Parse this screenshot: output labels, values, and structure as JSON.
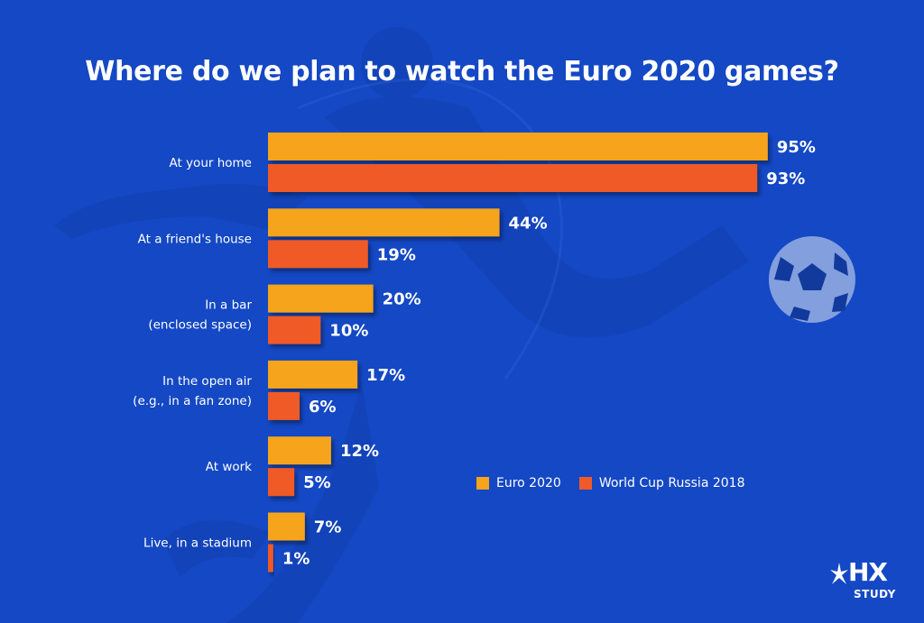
{
  "title": "Where do we plan to watch the Euro 2020 games?",
  "colors": {
    "background": "#1448c4",
    "euro2020": "#f5a41b",
    "wc2018": "#f05a28",
    "text": "#ffffff"
  },
  "legend": {
    "position": "bottom-right"
  },
  "logo": {
    "text": "HX",
    "subtext": "STUDY"
  },
  "chart_data": {
    "type": "bar",
    "orientation": "horizontal",
    "title": "Where do we plan to watch the Euro 2020 games?",
    "categories": [
      [
        "At your home"
      ],
      [
        "At a friend's house"
      ],
      [
        "In a bar",
        "(enclosed space)"
      ],
      [
        "In the open air",
        "(e.g., in a fan zone)"
      ],
      [
        "At work"
      ],
      [
        "Live, in a stadium"
      ]
    ],
    "series": [
      {
        "name": "Euro 2020",
        "values": [
          95,
          44,
          20,
          17,
          12,
          7
        ],
        "labels": [
          "95%",
          "44%",
          "20%",
          "17%",
          "12%",
          "7%"
        ]
      },
      {
        "name": "World Cup Russia 2018",
        "values": [
          93,
          19,
          10,
          6,
          5,
          1
        ],
        "labels": [
          "93%",
          "19%",
          "10%",
          "6%",
          "5%",
          "1%"
        ]
      }
    ],
    "xlim": [
      0,
      100
    ],
    "unit": "%",
    "grid": false
  }
}
